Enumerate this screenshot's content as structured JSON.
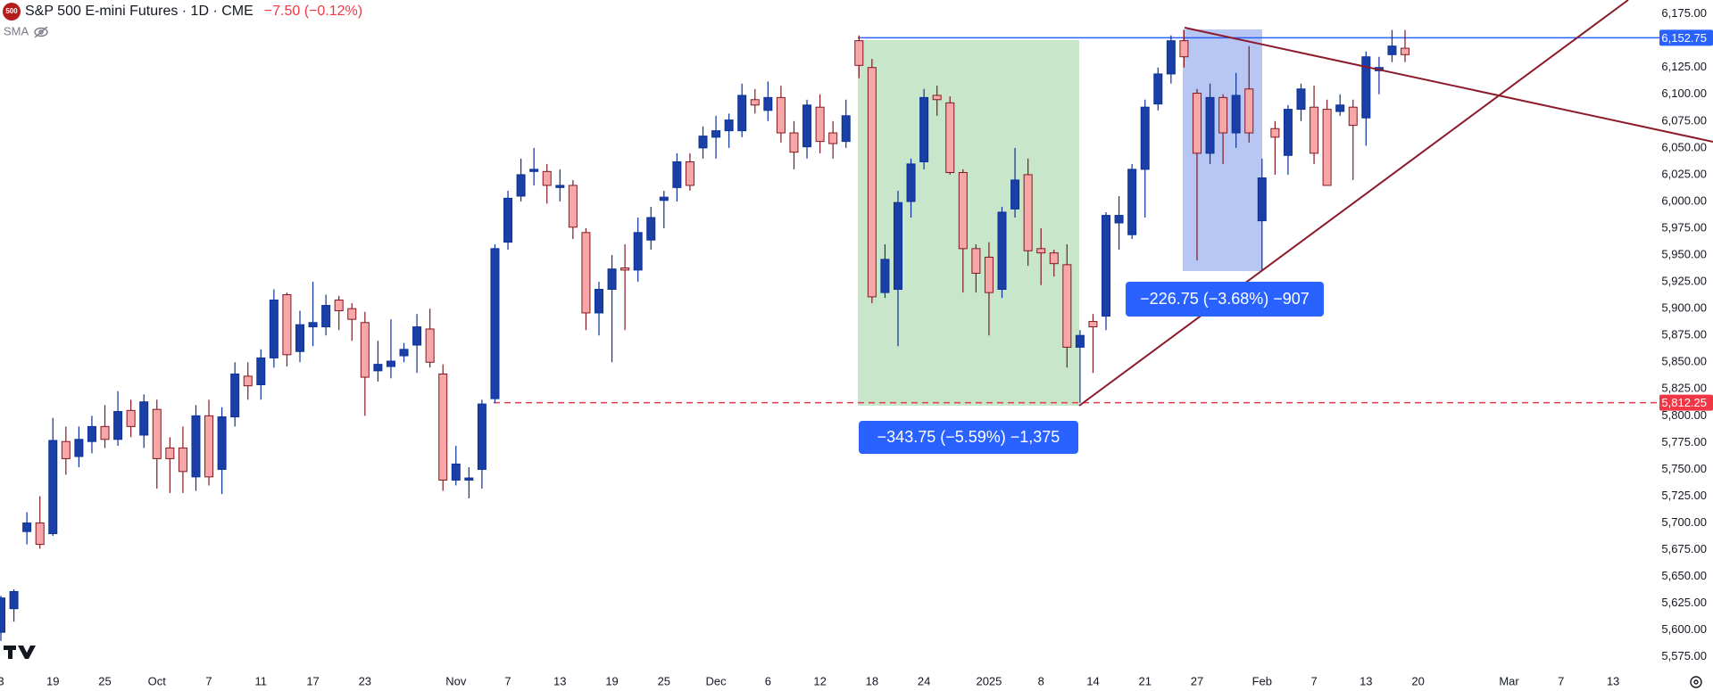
{
  "chart_data": {
    "type": "candlestick",
    "title": "S&P 500 E-mini Futures · 1D · CME",
    "change": "−7.50 (−0.12%)",
    "logo": "500",
    "indicator": "SMA",
    "up_color": "#1a3fa6",
    "down_color": "#f7a7a7",
    "grid": false,
    "categories": [
      "3",
      null,
      null,
      null,
      "19",
      null,
      null,
      null,
      "25",
      null,
      null,
      null,
      "Oct",
      null,
      null,
      null,
      "7",
      null,
      null,
      null,
      "11",
      null,
      null,
      null,
      "17",
      null,
      null,
      null,
      "23",
      null,
      null,
      null,
      null,
      null,
      null,
      "Nov",
      null,
      null,
      null,
      "7",
      null,
      null,
      null,
      "13",
      null,
      null,
      null,
      "19",
      null,
      null,
      null,
      "25",
      null,
      null,
      null,
      "Dec",
      null,
      null,
      null,
      "6",
      null,
      null,
      null,
      "12",
      null,
      null,
      null,
      "18",
      null,
      null,
      null,
      "24",
      null,
      null,
      null,
      null,
      "2025",
      null,
      null,
      null,
      "8",
      null,
      null,
      null,
      "14",
      null,
      null,
      null,
      "21",
      null,
      null,
      null,
      "27",
      null,
      null,
      null,
      null,
      "Feb",
      null,
      null,
      null,
      "7",
      null,
      null,
      null,
      "13",
      null,
      null,
      null,
      "20",
      null,
      null,
      null,
      null,
      null,
      null,
      "Mar",
      null,
      null,
      null,
      "7",
      null,
      null,
      null,
      "13",
      null,
      null
    ],
    "open": [
      5598,
      5620,
      5692,
      5700,
      5690,
      5776,
      5762,
      5776,
      5790,
      5778,
      5805,
      5782,
      5806,
      5770,
      5770,
      5743,
      5800,
      5750,
      5799,
      5837,
      5829,
      5854,
      5913,
      5860,
      5883,
      5883,
      5908,
      5900,
      5887,
      5842,
      5846,
      5856,
      5866,
      5881,
      5839,
      5740,
      5740,
      5750,
      5816,
      5962,
      6005,
      6028,
      6028,
      6013,
      6015,
      5971,
      5896,
      5918,
      5938,
      5936,
      5964,
      6001,
      6013,
      6037,
      6050,
      6060,
      6066,
      6066,
      6095,
      6085,
      6097,
      6064,
      6051,
      6088,
      6064,
      6056,
      6150,
      6125,
      5915,
      5918,
      6000,
      6037,
      6099,
      6092,
      6027,
      5956,
      5948,
      5918,
      5993,
      6025,
      5956,
      5952,
      5941,
      5864,
      5888,
      5893,
      5980,
      5969,
      6030,
      6091,
      6119,
      6150,
      6101,
      6045,
      6097,
      6064,
      6105,
      5982,
      6068,
      6043,
      6086,
      6088,
      6086,
      6084,
      6088,
      6078,
      6122,
      6137,
      6143,
      null,
      null,
      null,
      null,
      null,
      null,
      null,
      null,
      null,
      null,
      null,
      null,
      null,
      null,
      null,
      null,
      null,
      null
    ],
    "high": [
      5632,
      5638,
      5710,
      5725,
      5798,
      5790,
      5790,
      5800,
      5810,
      5823,
      5815,
      5820,
      5815,
      5780,
      5790,
      5810,
      5815,
      5808,
      5850,
      5850,
      5862,
      5918,
      5915,
      5898,
      5925,
      5913,
      5912,
      5905,
      5897,
      5870,
      5890,
      5868,
      5895,
      5900,
      5848,
      5772,
      5752,
      5815,
      5960,
      6010,
      6040,
      6050,
      6035,
      6030,
      6020,
      5975,
      5925,
      5950,
      5960,
      5985,
      5995,
      6010,
      6045,
      6045,
      6070,
      6080,
      6082,
      6110,
      6105,
      6112,
      6108,
      6075,
      6095,
      6100,
      6075,
      6095,
      6155,
      6133,
      5960,
      6010,
      6040,
      6105,
      6108,
      6098,
      6030,
      5960,
      5962,
      5995,
      6050,
      6040,
      5975,
      5955,
      5960,
      5880,
      5895,
      5990,
      6005,
      6035,
      6095,
      6125,
      6155,
      6160,
      6105,
      6110,
      6100,
      6120,
      6145,
      6040,
      6075,
      6090,
      6110,
      6108,
      6095,
      6100,
      6095,
      6140,
      6135,
      6160,
      6160,
      null,
      null,
      null,
      null,
      null,
      null,
      null,
      null,
      null,
      null,
      null,
      null,
      null,
      null,
      null,
      null,
      null,
      null
    ],
    "low": [
      5590,
      5608,
      5680,
      5676,
      5688,
      5745,
      5752,
      5765,
      5770,
      5772,
      5780,
      5770,
      5732,
      5728,
      5728,
      5730,
      5735,
      5727,
      5790,
      5815,
      5815,
      5845,
      5846,
      5850,
      5865,
      5875,
      5880,
      5870,
      5800,
      5832,
      5835,
      5850,
      5840,
      5845,
      5730,
      5735,
      5723,
      5732,
      5812,
      5955,
      6000,
      6015,
      5998,
      6000,
      5965,
      5880,
      5875,
      5850,
      5880,
      5925,
      5955,
      5975,
      6000,
      6010,
      6040,
      6040,
      6050,
      6060,
      6082,
      6075,
      6055,
      6030,
      6040,
      6045,
      6040,
      6050,
      6115,
      5905,
      5910,
      5865,
      5985,
      6030,
      6080,
      6025,
      5915,
      5915,
      5875,
      5910,
      5985,
      5940,
      5922,
      5930,
      5845,
      5812,
      5840,
      5880,
      5955,
      5965,
      5985,
      6085,
      6110,
      6125,
      5945,
      6035,
      6035,
      6050,
      6055,
      5935,
      6025,
      6025,
      6075,
      6035,
      6015,
      6080,
      6020,
      6052,
      6100,
      6130,
      6130,
      null,
      null,
      null,
      null,
      null,
      null,
      null,
      null,
      null,
      null,
      null,
      null,
      null,
      null,
      null,
      null,
      null,
      null
    ],
    "close": [
      5630,
      5636,
      5700,
      5680,
      5777,
      5760,
      5778,
      5790,
      5778,
      5804,
      5790,
      5813,
      5760,
      5760,
      5748,
      5800,
      5743,
      5799,
      5839,
      5828,
      5854,
      5908,
      5857,
      5885,
      5887,
      5903,
      5898,
      5890,
      5836,
      5848,
      5851,
      5862,
      5883,
      5850,
      5740,
      5755,
      5742,
      5811,
      5956,
      6003,
      6025,
      6030,
      6015,
      6015,
      5976,
      5896,
      5918,
      5937,
      5936,
      5971,
      5985,
      6004,
      6037,
      6015,
      6061,
      6066,
      6076,
      6099,
      6090,
      6097,
      6064,
      6046,
      6090,
      6056,
      6054,
      6080,
      6127,
      5911,
      5946,
      5999,
      6035,
      6097,
      6095,
      6027,
      5956,
      5933,
      5915,
      5990,
      6020,
      5954,
      5952,
      5942,
      5864,
      5875,
      5883,
      5987,
      5987,
      6030,
      6088,
      6119,
      6150,
      6135,
      6045,
      6097,
      6064,
      6099,
      6064,
      6022,
      6060,
      6086,
      6105,
      6045,
      6015,
      6090,
      6071,
      6135,
      6125,
      6145,
      6137,
      null,
      null,
      null,
      null,
      null,
      null,
      null,
      null,
      null,
      null,
      null,
      null,
      null,
      null,
      null,
      null,
      null,
      null
    ],
    "ylim": [
      5564,
      6188
    ],
    "yticks": [
      {
        "value": 6175,
        "label": "6,175.00"
      },
      {
        "value": 6125,
        "label": "6,125.00"
      },
      {
        "value": 6100,
        "label": "6,100.00"
      },
      {
        "value": 6075,
        "label": "6,075.00"
      },
      {
        "value": 6050,
        "label": "6,050.00"
      },
      {
        "value": 6025,
        "label": "6,025.00"
      },
      {
        "value": 6000,
        "label": "6,000.00"
      },
      {
        "value": 5975,
        "label": "5,975.00"
      },
      {
        "value": 5950,
        "label": "5,950.00"
      },
      {
        "value": 5925,
        "label": "5,925.00"
      },
      {
        "value": 5900,
        "label": "5,900.00"
      },
      {
        "value": 5875,
        "label": "5,875.00"
      },
      {
        "value": 5850,
        "label": "5,850.00"
      },
      {
        "value": 5825,
        "label": "5,825.00"
      },
      {
        "value": 5800,
        "label": "5,800.00"
      },
      {
        "value": 5775,
        "label": "5,775.00"
      },
      {
        "value": 5750,
        "label": "5,750.00"
      },
      {
        "value": 5725,
        "label": "5,725.00"
      },
      {
        "value": 5700,
        "label": "5,700.00"
      },
      {
        "value": 5675,
        "label": "5,675.00"
      },
      {
        "value": 5650,
        "label": "5,650.00"
      },
      {
        "value": 5625,
        "label": "5,625.00"
      },
      {
        "value": 5600,
        "label": "5,600.00"
      },
      {
        "value": 5575,
        "label": "5,575.00"
      }
    ],
    "levels": [
      {
        "value": 6152.75,
        "label": "6,152.75",
        "color": "#2962ff",
        "style": "solid"
      },
      {
        "value": 5812.25,
        "label": "5,812.25",
        "color": "#f23645",
        "style": "dashed"
      }
    ],
    "annotations": [
      "−226.75 (−3.68%) −907",
      "−343.75 (−5.59%) −1,375"
    ]
  }
}
